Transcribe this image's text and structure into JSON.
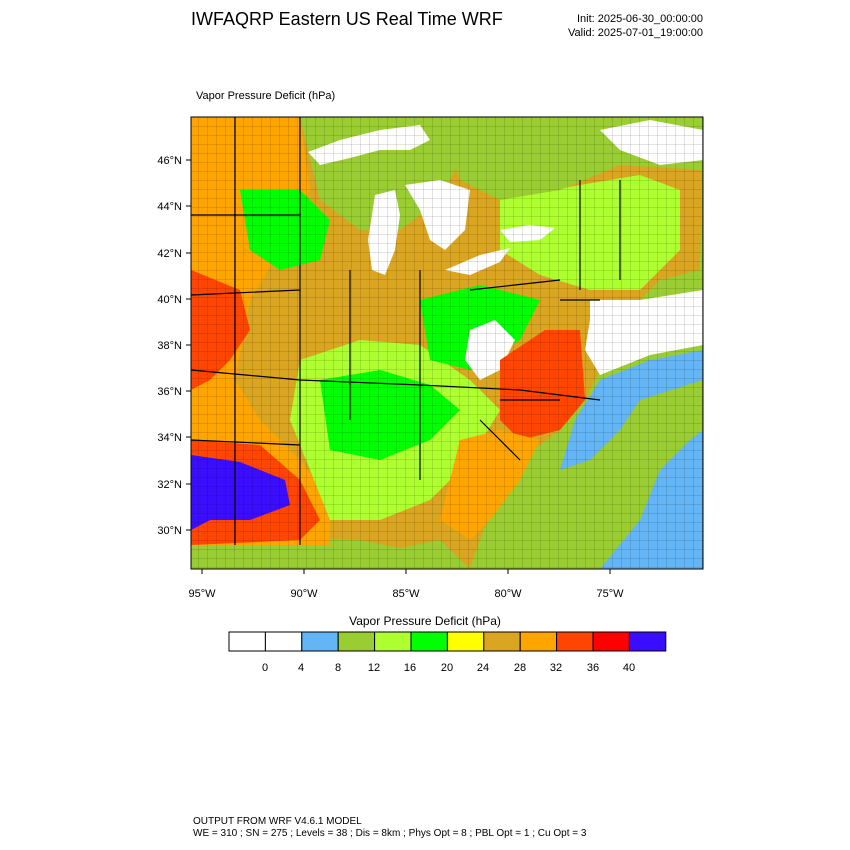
{
  "header": {
    "title": "IWFAQRP Eastern US Real Time WRF",
    "init": "Init: 2025-06-30_00:00:00",
    "valid": "Valid: 2025-07-01_19:00:00"
  },
  "plot": {
    "label": "Vapor Pressure Deficit   (hPa)",
    "lat_ticks": [
      "46°N",
      "44°N",
      "42°N",
      "40°N",
      "38°N",
      "36°N",
      "34°N",
      "32°N",
      "30°N"
    ],
    "lon_ticks": [
      "95°W",
      "90°W",
      "85°W",
      "80°W",
      "75°W"
    ]
  },
  "colorbar": {
    "title": "Vapor Pressure Deficit  (hPa)",
    "labels": [
      "0",
      "4",
      "8",
      "12",
      "16",
      "20",
      "24",
      "28",
      "32",
      "36",
      "40"
    ],
    "colors": [
      "#ffffff",
      "#ffffff",
      "#63b5f5",
      "#9acd32",
      "#adff2f",
      "#00ff00",
      "#ffff00",
      "#daa520",
      "#ffa500",
      "#ff4500",
      "#ff0000",
      "#3a0dff"
    ]
  },
  "footer": {
    "line1": "OUTPUT FROM WRF V4.6.1 MODEL",
    "line2": "WE = 310 ; SN = 275 ; Levels = 38 ; Dis = 8km ; Phys Opt = 8 ; PBL Opt = 1 ; Cu Opt = 3"
  }
}
